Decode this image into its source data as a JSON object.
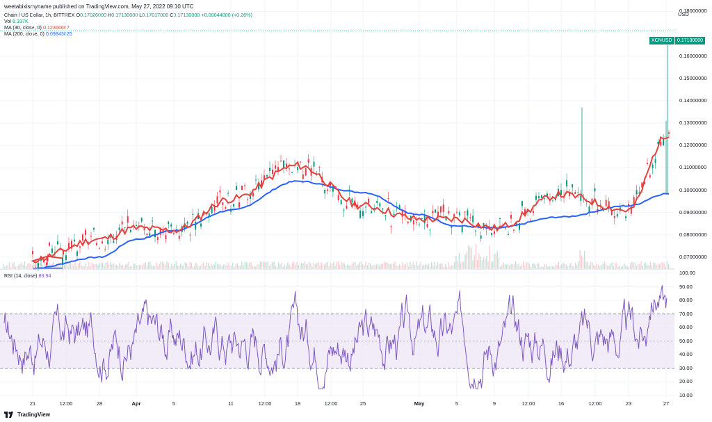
{
  "header": {
    "published": "weetabixismyname published on TradingView.com, May 27, 2022 09:10 UTC"
  },
  "legend": {
    "symbol": "Chain / US Dollar, 1h, BITTREX",
    "o_label": "O",
    "o": "0.17026000",
    "h_label": "H",
    "h": "0.17130000",
    "l_label": "L",
    "l": "0.17017000",
    "c_label": "C",
    "c": "0.17130000",
    "change": "+0.00044000 (+0.26%)",
    "vol_label": "Vol",
    "vol": "6.337K",
    "ma30_label": "MA (30, close, 0)",
    "ma30": "0.12366667",
    "ma200_label": "MA (200, close, 0)",
    "ma200": "0.09843825"
  },
  "rsi_legend": {
    "label": "RSI (14, close)",
    "value": "89.94"
  },
  "price_axis": {
    "title": "USD",
    "ticks": [
      "0.18000000",
      "0.16000000",
      "0.15000000",
      "0.14000000",
      "0.13000000",
      "0.12000000",
      "0.11000000",
      "0.10000000",
      "0.09000000",
      "0.08000000",
      "0.07000000"
    ],
    "symbol_badge": "XCNUSD",
    "last_price": "0.17130000"
  },
  "rsi_axis": {
    "ticks": [
      "100.00",
      "90.00",
      "80.00",
      "70.00",
      "60.00",
      "50.00",
      "40.00",
      "30.00",
      "20.00",
      "10.00"
    ]
  },
  "time_axis": {
    "ticks": [
      "21",
      "12:00",
      "28",
      "Apr",
      "5",
      "11",
      "12:00",
      "18",
      "12:00",
      "25",
      "May",
      "5",
      "9",
      "12:00",
      "16",
      "12:00",
      "23",
      "27"
    ]
  },
  "footer": {
    "brand": "TradingView"
  },
  "colors": {
    "up": "#089981",
    "down": "#f23645",
    "ma30": "#e5413d",
    "ma200": "#2962ff",
    "rsi": "#7e57c2",
    "rsi_band": "#ede7f6",
    "grid": "#f0f3fa"
  },
  "chart_data": {
    "type": "line",
    "title": "Chain / US Dollar, 1h, BITTREX",
    "x": [
      "21",
      "28",
      "Apr",
      "5",
      "11",
      "18",
      "25",
      "May",
      "5",
      "9",
      "16",
      "23",
      "27"
    ],
    "series": [
      {
        "name": "MA (30, close, 0)",
        "values": [
          0.069,
          0.078,
          0.083,
          0.082,
          0.096,
          0.111,
          0.093,
          0.087,
          0.087,
          0.083,
          0.098,
          0.091,
          0.1237
        ]
      },
      {
        "name": "MA (200, close, 0)",
        "values": [
          0.065,
          0.07,
          0.078,
          0.082,
          0.091,
          0.104,
          0.099,
          0.089,
          0.084,
          0.083,
          0.088,
          0.093,
          0.0984
        ]
      }
    ],
    "ylim": [
      0.065,
      0.182
    ],
    "rsi": {
      "name": "RSI (14, close)",
      "last": 89.94,
      "upper": 70,
      "lower": 30,
      "ylim": [
        10,
        100
      ]
    }
  }
}
